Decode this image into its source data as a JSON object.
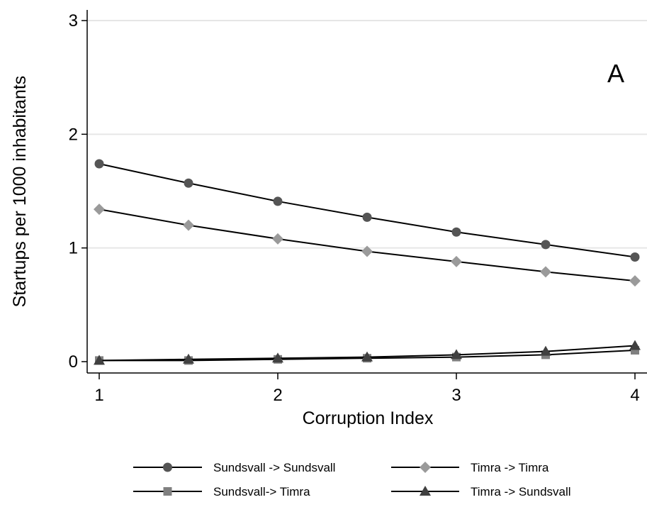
{
  "chart_data": {
    "type": "line",
    "title": "",
    "panel_label": "A",
    "xlabel": "Corruption Index",
    "ylabel": "Startups per 1000 inhabitants",
    "xlim": [
      1,
      4
    ],
    "ylim": [
      0,
      3
    ],
    "xticks": [
      1,
      2,
      3,
      4
    ],
    "yticks": [
      0,
      1,
      2,
      3
    ],
    "grid": "horizontal",
    "legend_position": "bottom",
    "x": [
      1,
      1.5,
      2,
      2.5,
      3,
      3.5,
      4
    ],
    "series": [
      {
        "name": "Sundsvall -> Sundsvall",
        "marker": "circle",
        "color": "#555555",
        "values": [
          1.74,
          1.57,
          1.41,
          1.27,
          1.14,
          1.03,
          0.92
        ]
      },
      {
        "name": "Timra -> Timra",
        "marker": "diamond",
        "color": "#9a9a9a",
        "values": [
          1.34,
          1.2,
          1.08,
          0.97,
          0.88,
          0.79,
          0.71
        ]
      },
      {
        "name": "Sundsvall-> Timra",
        "marker": "square",
        "color": "#808080",
        "values": [
          0.01,
          0.01,
          0.02,
          0.03,
          0.04,
          0.06,
          0.1
        ]
      },
      {
        "name": "Timra -> Sundsvall",
        "marker": "triangle",
        "color": "#404040",
        "values": [
          0.01,
          0.02,
          0.03,
          0.04,
          0.06,
          0.09,
          0.14
        ]
      }
    ]
  }
}
